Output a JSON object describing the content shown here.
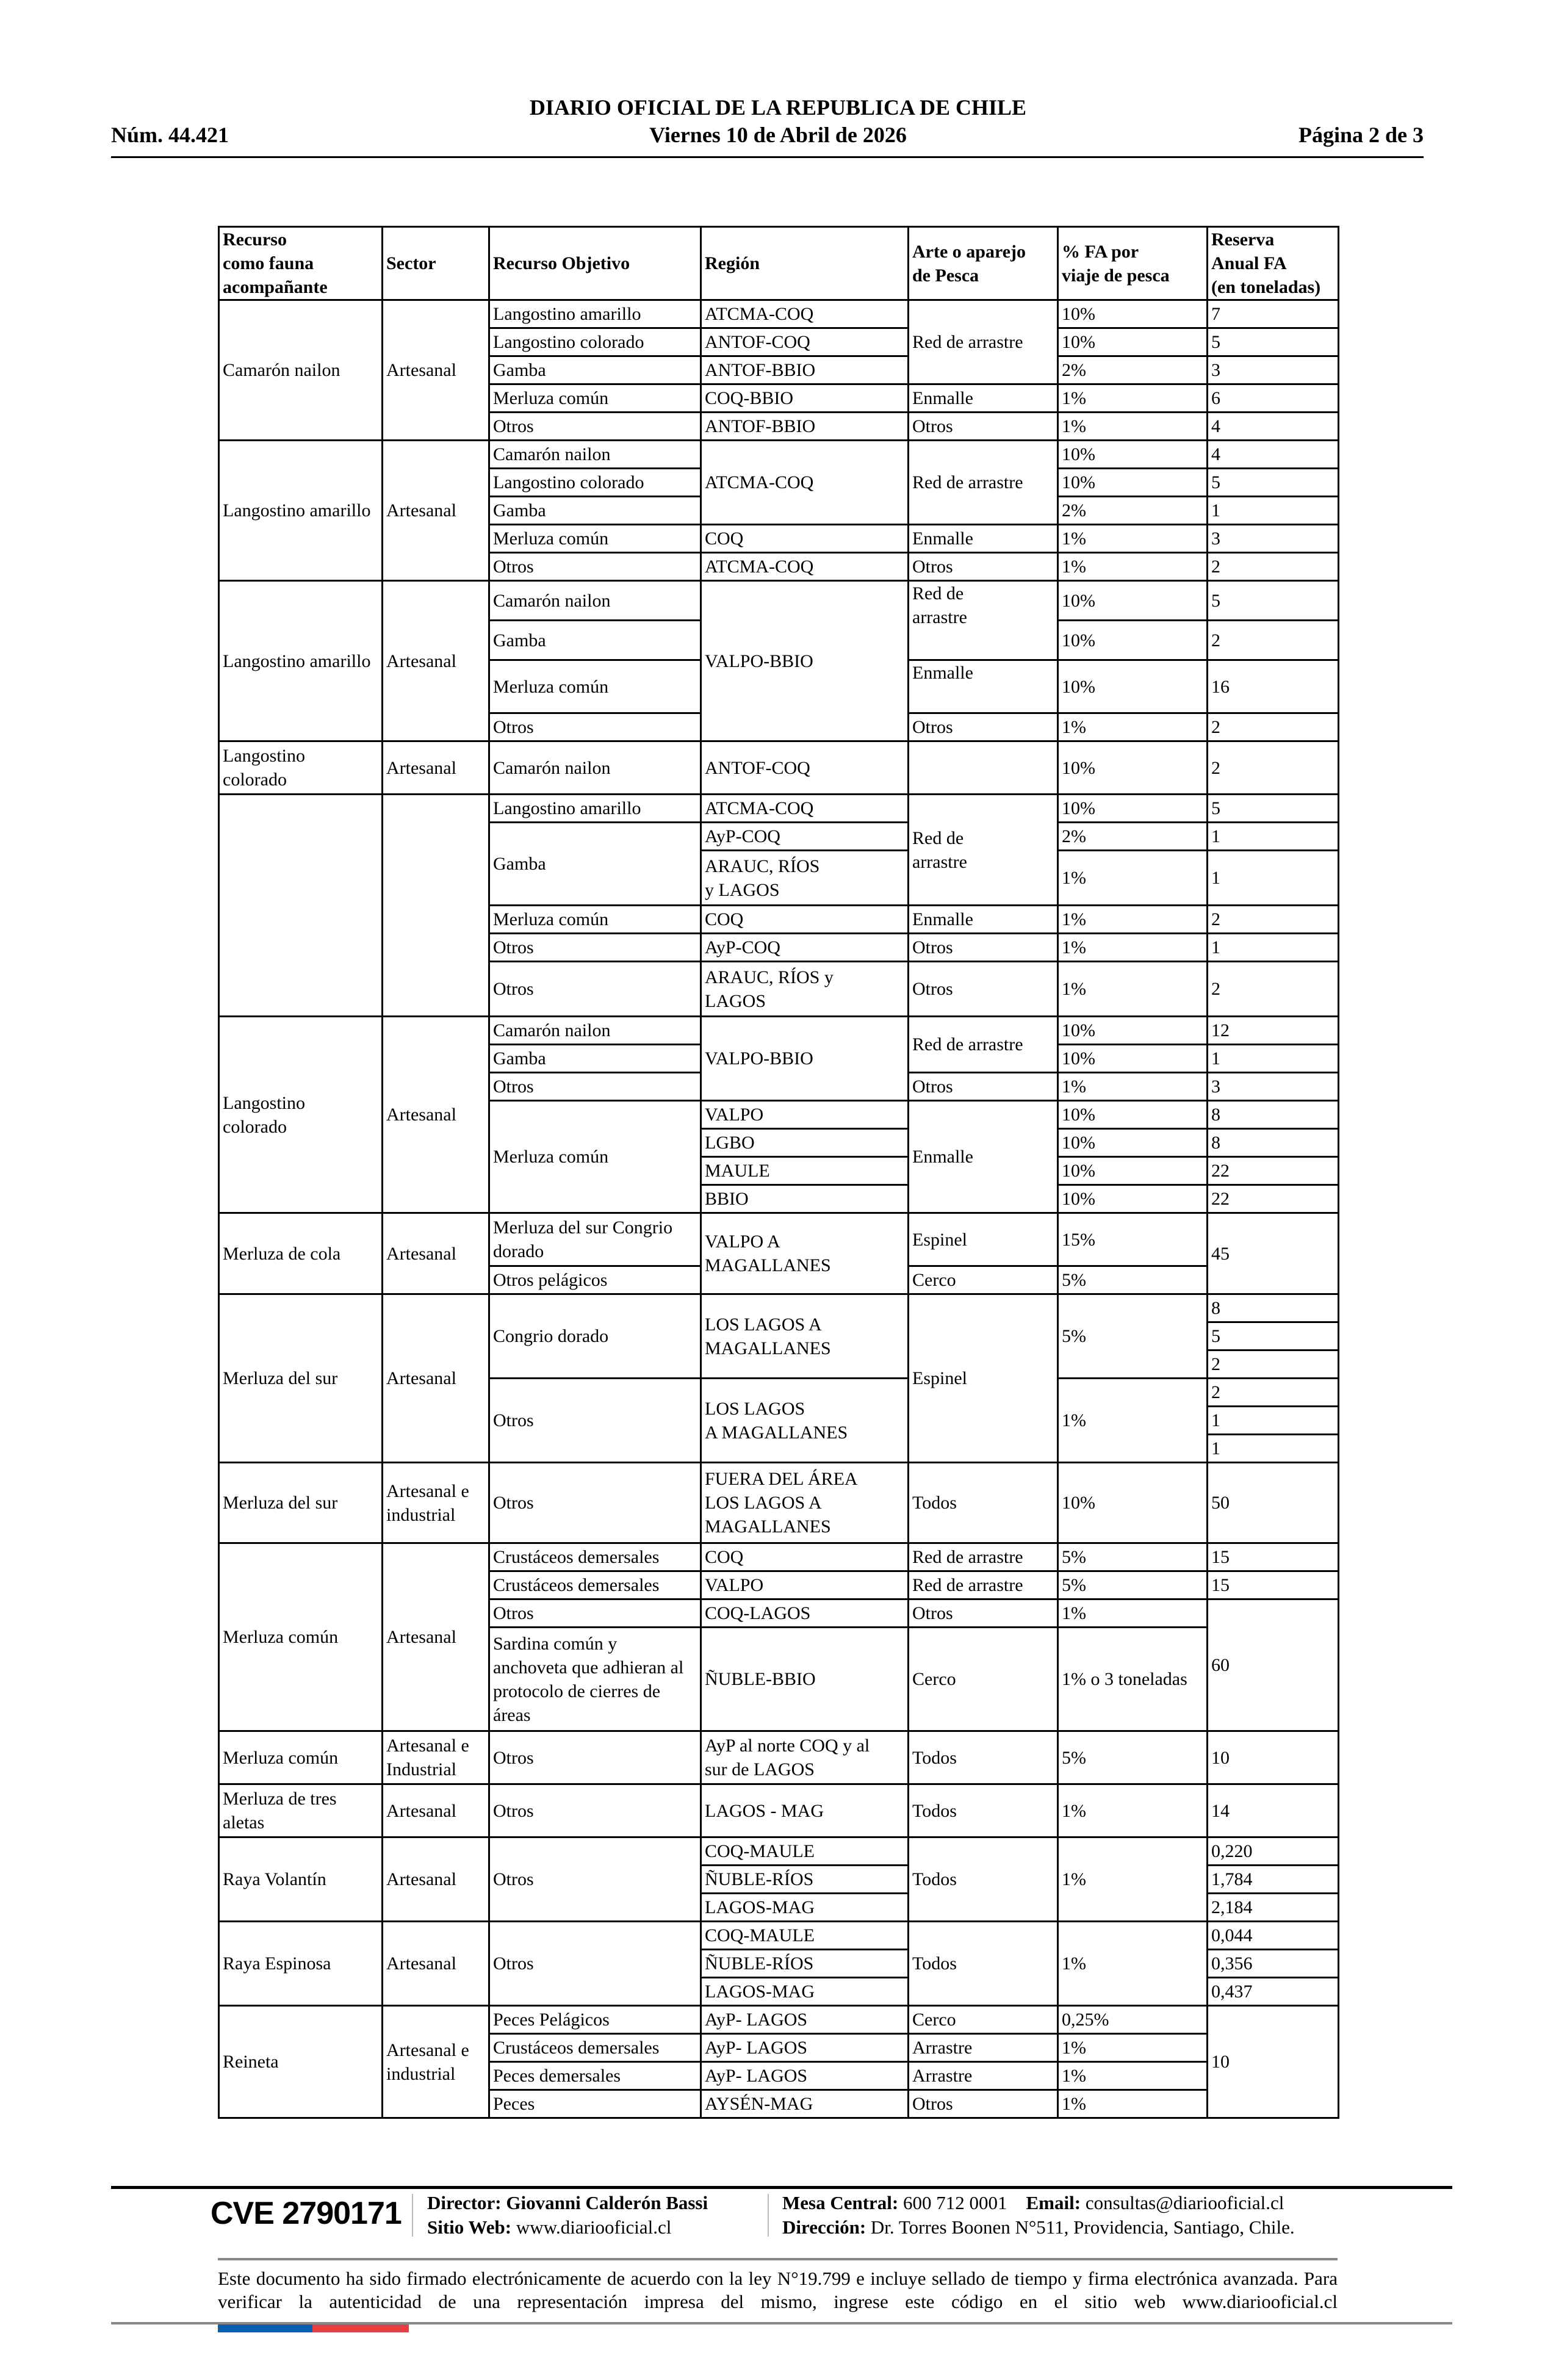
{
  "header": {
    "title": "DIARIO OFICIAL DE LA REPUBLICA DE CHILE",
    "number": "Núm. 44.421",
    "date": "Viernes 10 de Abril de 2026",
    "page": "Página 2 de 3"
  },
  "table": {
    "headers": [
      "Recurso\ncomo fauna\nacompañante",
      "Sector",
      "Recurso Objetivo",
      "Región",
      "Arte o aparejo\nde Pesca",
      "% FA por\nviaje de pesca",
      "Reserva\nAnual FA\n(en toneladas)"
    ],
    "rows": [
      [
        "Camarón nailon",
        "Artesanal",
        "Langostino amarillo",
        "ATCMA-COQ",
        "Red de arrastre",
        "10%",
        "7"
      ],
      [
        "Langostino colorado",
        "ANTOF-COQ",
        "10%",
        "5"
      ],
      [
        "Gamba",
        "ANTOF-BBIO",
        "2%",
        "3"
      ],
      [
        "Merluza común",
        "COQ-BBIO",
        "Enmalle",
        "1%",
        "6"
      ],
      [
        "Otros",
        "ANTOF-BBIO",
        "Otros",
        "1%",
        "4"
      ],
      [
        "Langostino amarillo",
        "Artesanal",
        "Camarón nailon",
        "ATCMA-COQ",
        "Red de arrastre",
        "10%",
        "4"
      ],
      [
        "Langostino colorado",
        "10%",
        "5"
      ],
      [
        "Gamba",
        "2%",
        "1"
      ],
      [
        "Merluza común",
        "COQ",
        "Enmalle",
        "1%",
        "3"
      ],
      [
        "Otros",
        "ATCMA-COQ",
        "Otros",
        "1%",
        "2"
      ],
      [
        "Langostino amarillo",
        "Artesanal",
        "Camarón nailon",
        "VALPO-BBIO",
        "Red de\narrastre",
        "10%",
        "5"
      ],
      [
        "Gamba",
        "10%",
        "2"
      ],
      [
        "Merluza común",
        "Enmalle",
        "10%",
        "16"
      ],
      [
        "Otros",
        "Otros",
        "1%",
        "2"
      ],
      [
        "Langostino\ncolorado",
        "Artesanal",
        "Camarón nailon",
        "ANTOF-COQ",
        "",
        "10%",
        "2"
      ],
      [
        "",
        "",
        "Langostino amarillo",
        "ATCMA-COQ",
        "Red de\narrastre",
        "10%",
        "5"
      ],
      [
        "Gamba",
        "AyP-COQ",
        "2%",
        "1"
      ],
      [
        "ARAUC, RÍOS\ny LAGOS",
        "1%",
        "1"
      ],
      [
        "Merluza común",
        "COQ",
        "Enmalle",
        "1%",
        "2"
      ],
      [
        "Otros",
        "AyP-COQ",
        "Otros",
        "1%",
        "1"
      ],
      [
        "Otros",
        "ARAUC, RÍOS y\nLAGOS",
        "Otros",
        "1%",
        "2"
      ],
      [
        "Langostino\ncolorado",
        "Artesanal",
        "Camarón nailon",
        "VALPO-BBIO",
        "Red de arrastre",
        "10%",
        "12"
      ],
      [
        "Gamba",
        "10%",
        "1"
      ],
      [
        "Otros",
        "Otros",
        "1%",
        "3"
      ],
      [
        "Merluza común",
        "VALPO",
        "Enmalle",
        "10%",
        "8"
      ],
      [
        "LGBO",
        "10%",
        "8"
      ],
      [
        "MAULE",
        "10%",
        "22"
      ],
      [
        "BBIO",
        "10%",
        "22"
      ],
      [
        "Merluza de cola",
        "Artesanal",
        "Merluza del sur Congrio\ndorado",
        "VALPO A\nMAGALLANES",
        "Espinel",
        "15%",
        "45"
      ],
      [
        "Otros pelágicos",
        "Cerco",
        "5%"
      ],
      [
        "Merluza del sur",
        "Artesanal",
        "Congrio dorado",
        "LOS LAGOS A\nMAGALLANES",
        "Espinel",
        "5%",
        "8"
      ],
      [
        "5"
      ],
      [
        "2"
      ],
      [
        "Otros",
        "LOS LAGOS\nA MAGALLANES",
        "1%",
        "2"
      ],
      [
        "1"
      ],
      [
        "1"
      ],
      [
        "Merluza del sur",
        "Artesanal e\nindustrial",
        "Otros",
        "FUERA DEL ÁREA\nLOS LAGOS A\nMAGALLANES",
        "Todos",
        "10%",
        "50"
      ],
      [
        "Merluza común",
        "Artesanal",
        "Crustáceos demersales",
        "COQ",
        "Red de arrastre",
        "5%",
        "15"
      ],
      [
        "Crustáceos demersales",
        "VALPO",
        "Red de arrastre",
        "5%",
        "15"
      ],
      [
        "Otros",
        "COQ-LAGOS",
        "Otros",
        "1%",
        "60"
      ],
      [
        "Sardina común y\nanchoveta que adhieran al\nprotocolo de cierres de\náreas",
        "ÑUBLE-BBIO",
        "Cerco",
        "1% o 3 toneladas"
      ],
      [
        "Merluza común",
        "Artesanal e\nIndustrial",
        "Otros",
        "AyP al norte COQ y al\nsur de LAGOS",
        "Todos",
        "5%",
        "10"
      ],
      [
        "Merluza de tres\naletas",
        "Artesanal",
        "Otros",
        "LAGOS - MAG",
        "Todos",
        "1%",
        "14"
      ],
      [
        "Raya Volantín",
        "Artesanal",
        "Otros",
        "COQ-MAULE",
        "Todos",
        "1%",
        "0,220"
      ],
      [
        "ÑUBLE-RÍOS",
        "1,784"
      ],
      [
        "LAGOS-MAG",
        "2,184"
      ],
      [
        "Raya Espinosa",
        "Artesanal",
        "Otros",
        "COQ-MAULE",
        "Todos",
        "1%",
        "0,044"
      ],
      [
        "ÑUBLE-RÍOS",
        "0,356"
      ],
      [
        "LAGOS-MAG",
        "0,437"
      ],
      [
        "Reineta",
        "Artesanal e\nindustrial",
        "Peces Pelágicos",
        "AyP- LAGOS",
        "Cerco",
        "0,25%",
        "10"
      ],
      [
        "Crustáceos demersales",
        "AyP- LAGOS",
        "Arrastre",
        "1%"
      ],
      [
        "Peces demersales",
        "AyP- LAGOS",
        "Arrastre",
        "1%"
      ],
      [
        "Peces",
        "AYSÉN-MAG",
        "Otros",
        "1%"
      ]
    ]
  },
  "footer": {
    "cve": "CVE 2790171",
    "director_label": "Director:",
    "director": "Giovanni Calderón Bassi",
    "web_label": "Sitio Web:",
    "web": "www.diariooficial.cl",
    "phone_label": "Mesa Central:",
    "phone": "600 712 0001",
    "email_label": "Email:",
    "email": "consultas@diariooficial.cl",
    "address_label": "Dirección:",
    "address": "Dr. Torres Boonen N°511, Providencia, Santiago, Chile.",
    "legal": "Este documento ha sido firmado electrónicamente de acuerdo con la ley N°19.799 e incluye sellado de tiempo y firma electrónica avanzada. Para verificar la autenticidad de una representación impresa del mismo, ingrese este código en el sitio web www.diariooficial.cl",
    "flag_colors": [
      "#0b5fb0",
      "#e5403f"
    ]
  }
}
